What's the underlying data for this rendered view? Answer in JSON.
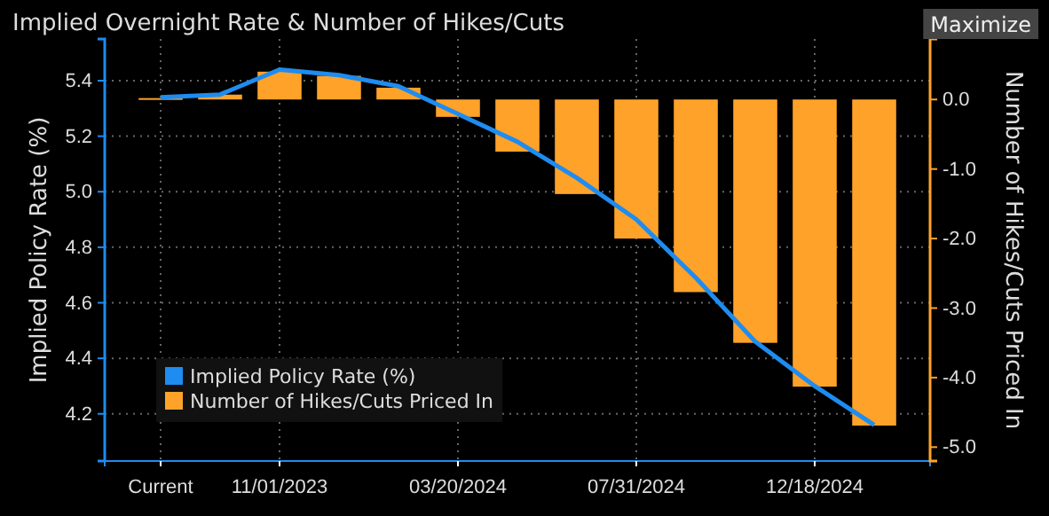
{
  "chart_data": {
    "type": "bar",
    "title": "Implied Overnight Rate & Number of Hikes/Cuts",
    "ylabel": "Implied Policy Rate (%)",
    "y2label": "Number of Hikes/Cuts Priced In",
    "categories": [
      "Current",
      null,
      "11/01/2023",
      null,
      null,
      "03/20/2024",
      null,
      null,
      "07/31/2024",
      null,
      null,
      "12/18/2024",
      null
    ],
    "series": [
      {
        "name": "Number of Hikes/Cuts Priced In",
        "axis": "y2",
        "color": "#ffa229",
        "values": [
          0.02,
          0.07,
          0.4,
          0.34,
          0.17,
          -0.25,
          -0.75,
          -1.36,
          -2.0,
          -2.77,
          -3.5,
          -4.13,
          -4.69
        ]
      },
      {
        "name": "Implied Policy Rate (%)",
        "type": "line",
        "color": "#1e8cf0",
        "values": [
          5.34,
          5.35,
          5.44,
          5.42,
          5.38,
          5.28,
          5.18,
          5.05,
          4.9,
          4.69,
          4.46,
          4.3,
          4.16
        ]
      }
    ],
    "ylim": [
      4.03,
      5.55
    ],
    "yticks": [
      4.2,
      4.4,
      4.6,
      4.8,
      {
        "value": 5.0,
        "label": "5.0"
      },
      5.2,
      5.4
    ],
    "y2lim": [
      -5.2,
      0.87
    ],
    "y2ticks": [
      {
        "value": -5,
        "label": "-5.0"
      },
      {
        "value": -4,
        "label": "-4.0"
      },
      {
        "value": -3,
        "label": "-3.0"
      },
      {
        "value": -2,
        "label": "-2.0"
      },
      {
        "value": -1,
        "label": "-1.0"
      },
      {
        "value": 0,
        "label": "0.0"
      }
    ],
    "grid": true,
    "legend": "bottom left",
    "annotations": [
      "Maximize"
    ]
  }
}
